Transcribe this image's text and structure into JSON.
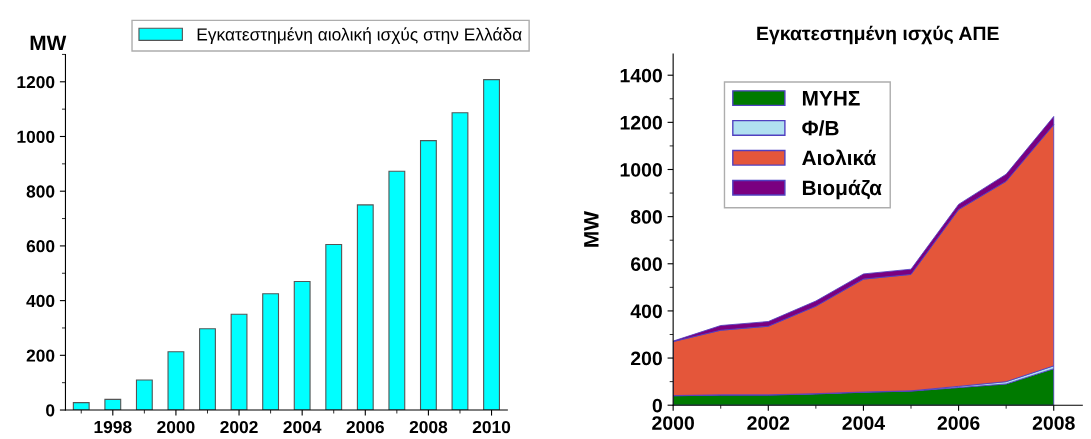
{
  "chart_data": [
    {
      "type": "bar",
      "ylabel": "MW",
      "x": [
        1997,
        1998,
        1999,
        2000,
        2001,
        2002,
        2003,
        2004,
        2005,
        2006,
        2007,
        2008,
        2009,
        2010
      ],
      "series": [
        {
          "name": "Εγκατεστημένη αιολική ισχύς στην Ελλάδα",
          "color": "#00ffff",
          "values": [
            27,
            39,
            110,
            213,
            297,
            350,
            425,
            470,
            605,
            750,
            873,
            985,
            1087,
            1208
          ]
        }
      ],
      "xlim": [
        1996.5,
        2010.5
      ],
      "xticks": [
        1998,
        2000,
        2002,
        2004,
        2006,
        2008,
        2010
      ],
      "ylim": [
        0,
        1300
      ],
      "yticks": [
        0,
        200,
        400,
        600,
        800,
        1000,
        1200
      ],
      "legend": "top",
      "grid": false
    },
    {
      "type": "area",
      "stacked": true,
      "title": "Εγκατεστημένη ισχύς ΑΠΕ",
      "ylabel": "MW",
      "x": [
        2000,
        2001,
        2002,
        2003,
        2004,
        2005,
        2006,
        2007,
        2008
      ],
      "series": [
        {
          "name": "ΜΥΗΣ",
          "color": "#007a00",
          "values": [
            40,
            43,
            43,
            48,
            55,
            60,
            75,
            90,
            155
          ]
        },
        {
          "name": "Φ/Β",
          "color": "#b0e0f0",
          "values": [
            1,
            1,
            1,
            1,
            1,
            1,
            5,
            10,
            12
          ]
        },
        {
          "name": "Αιολικά",
          "color": "#e4563a",
          "values": [
            229,
            274,
            291,
            371,
            479,
            494,
            750,
            850,
            1023
          ]
        },
        {
          "name": "Βιομάζα",
          "color": "#7a0080",
          "values": [
            2,
            20,
            20,
            22,
            22,
            22,
            22,
            30,
            35
          ]
        }
      ],
      "xlim": [
        2000,
        2008.6
      ],
      "xticks": [
        2000,
        2002,
        2004,
        2006,
        2008
      ],
      "ylim": [
        0,
        1490
      ],
      "yticks": [
        0,
        200,
        400,
        600,
        800,
        1000,
        1200,
        1400
      ],
      "legend": "top left",
      "grid": false
    }
  ]
}
